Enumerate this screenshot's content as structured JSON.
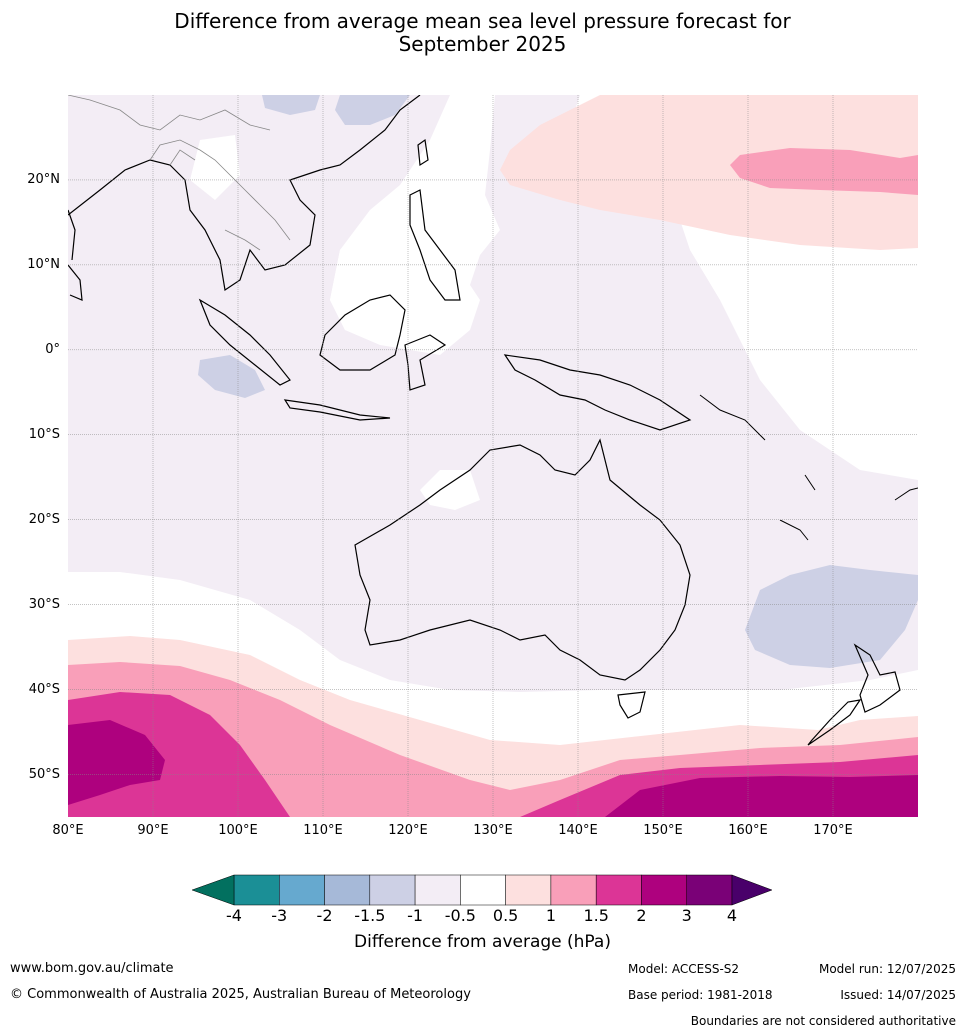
{
  "title_line1": "Difference from average mean sea level pressure forecast for",
  "title_line2": "September 2025",
  "map": {
    "lon_range": [
      80,
      180
    ],
    "lat_range": [
      -55,
      30
    ],
    "lat_labels": [
      {
        "lat": 20,
        "text": "20°N"
      },
      {
        "lat": 10,
        "text": "10°N"
      },
      {
        "lat": 0,
        "text": "0°"
      },
      {
        "lat": -10,
        "text": "10°S"
      },
      {
        "lat": -20,
        "text": "20°S"
      },
      {
        "lat": -30,
        "text": "30°S"
      },
      {
        "lat": -40,
        "text": "40°S"
      },
      {
        "lat": -50,
        "text": "50°S"
      }
    ],
    "lon_labels": [
      {
        "lon": 80,
        "text": "80°E"
      },
      {
        "lon": 90,
        "text": "90°E"
      },
      {
        "lon": 100,
        "text": "100°E"
      },
      {
        "lon": 110,
        "text": "110°E"
      },
      {
        "lon": 120,
        "text": "120°E"
      },
      {
        "lon": 130,
        "text": "130°E"
      },
      {
        "lon": 140,
        "text": "140°E"
      },
      {
        "lon": 150,
        "text": "150°E"
      },
      {
        "lon": 160,
        "text": "160°E"
      },
      {
        "lon": 170,
        "text": "170°E"
      }
    ]
  },
  "colorbar": {
    "title": "Difference from average (hPa)",
    "tick_labels": [
      "-4",
      "-3",
      "-2",
      "-1.5",
      "-1",
      "-0.5",
      "0.5",
      "1",
      "1.5",
      "2",
      "3",
      "4"
    ],
    "colors": [
      "#1b8f96",
      "#66a9cf",
      "#a6b9d8",
      "#cdd0e5",
      "#f3edf5",
      "#ffffff",
      "#fde0df",
      "#f99fb9",
      "#dc3596",
      "#ae017e",
      "#7a0177"
    ],
    "under_color": "#02705f",
    "over_color": "#49006a"
  },
  "footer": {
    "url": "www.bom.gov.au/climate",
    "copyright": "© Commonwealth of Australia 2025, Australian Bureau of Meteorology",
    "model": "Model: ACCESS-S2",
    "base_period": "Base period: 1981-2018",
    "model_run": "Model run: 12/07/2025",
    "issued": "Issued: 14/07/2025",
    "disclaimer": "Boundaries are not considered authoritative"
  }
}
